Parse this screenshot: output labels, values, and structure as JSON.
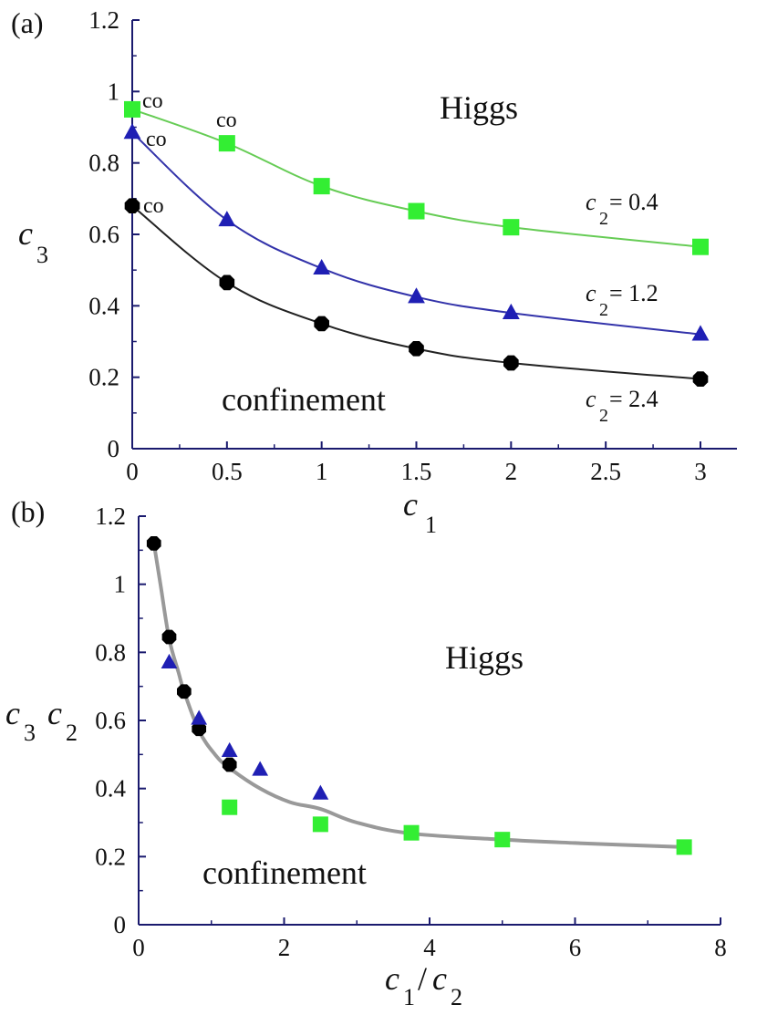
{
  "chart_data": [
    {
      "type": "line",
      "panel_label": "(a)",
      "xlabel": "c",
      "xlabel_sub": "1",
      "ylabel": "c",
      "ylabel_sub": "3",
      "xlim": [
        0,
        3
      ],
      "ylim": [
        0,
        1.2
      ],
      "x_ticks": [
        "0",
        "0.5",
        "1",
        "1.5",
        "2",
        "2.5",
        "3"
      ],
      "y_ticks": [
        "0",
        "0.2",
        "0.4",
        "0.6",
        "0.8",
        "1",
        "1.2"
      ],
      "grid": false,
      "region_labels": [
        "Higgs",
        "confinement"
      ],
      "series": [
        {
          "name_prefix": "c",
          "name_sub": "2",
          "name_value": "= 0.4",
          "marker": "square",
          "color": "#33ee33",
          "line_color": "#66cc55",
          "x": [
            0,
            0.5,
            1,
            1.5,
            2,
            3
          ],
          "y": [
            0.95,
            0.855,
            0.735,
            0.665,
            0.62,
            0.565
          ],
          "point_labels": [
            "co",
            "co",
            "",
            "",
            "",
            ""
          ]
        },
        {
          "name_prefix": "c",
          "name_sub": "2",
          "name_value": "= 1.2",
          "marker": "triangle",
          "color": "#1f1fb4",
          "line_color": "#3333aa",
          "x": [
            0,
            0.5,
            1,
            1.5,
            2,
            3
          ],
          "y": [
            0.885,
            0.64,
            0.505,
            0.425,
            0.38,
            0.32
          ],
          "point_labels": [
            "co",
            "",
            "",
            "",
            "",
            ""
          ]
        },
        {
          "name_prefix": "c",
          "name_sub": "2",
          "name_value": "= 2.4",
          "marker": "circle",
          "color": "#000000",
          "line_color": "#222222",
          "x": [
            0,
            0.5,
            1,
            1.5,
            2,
            3
          ],
          "y": [
            0.68,
            0.465,
            0.35,
            0.28,
            0.24,
            0.195
          ],
          "point_labels": [
            "co",
            "",
            "",
            "",
            "",
            ""
          ]
        }
      ]
    },
    {
      "type": "scatter",
      "panel_label": "(b)",
      "xlabel": "c",
      "xlabel_sub": "1",
      "xlabel_sep": "/",
      "xlabel2": "c",
      "xlabel2_sub": "2",
      "ylabel": "c",
      "ylabel_sub": "3",
      "ylabel2": "c",
      "ylabel2_sub": "2",
      "xlim": [
        0,
        8
      ],
      "ylim": [
        0,
        1.2
      ],
      "x_ticks": [
        "0",
        "2",
        "4",
        "6",
        "8"
      ],
      "y_ticks": [
        "0",
        "0.2",
        "0.4",
        "0.6",
        "0.8",
        "1",
        "1.2"
      ],
      "grid": false,
      "region_labels": [
        "Higgs",
        "confinement"
      ],
      "fit_curve": {
        "color": "#999999",
        "x": [
          0.21,
          0.3,
          0.42,
          0.55,
          0.625,
          0.83,
          1.05,
          1.25,
          1.67,
          2.08,
          2.5,
          3.0,
          3.75,
          5.0,
          6.0,
          7.5
        ],
        "y": [
          1.12,
          1.0,
          0.84,
          0.74,
          0.685,
          0.57,
          0.5,
          0.46,
          0.4,
          0.36,
          0.34,
          0.3,
          0.268,
          0.25,
          0.24,
          0.228
        ]
      },
      "series": [
        {
          "marker": "circle",
          "color": "#000000",
          "x": [
            0.21,
            0.42,
            0.625,
            0.83,
            1.25
          ],
          "y": [
            1.12,
            0.845,
            0.685,
            0.575,
            0.47
          ]
        },
        {
          "marker": "triangle",
          "color": "#1f1fb4",
          "x": [
            0.42,
            0.83,
            1.25,
            1.67,
            2.5
          ],
          "y": [
            0.77,
            0.605,
            0.51,
            0.455,
            0.385
          ]
        },
        {
          "marker": "square",
          "color": "#33ee33",
          "x": [
            1.25,
            2.5,
            3.75,
            5.0,
            7.5
          ],
          "y": [
            0.345,
            0.295,
            0.27,
            0.25,
            0.228
          ]
        }
      ]
    }
  ]
}
